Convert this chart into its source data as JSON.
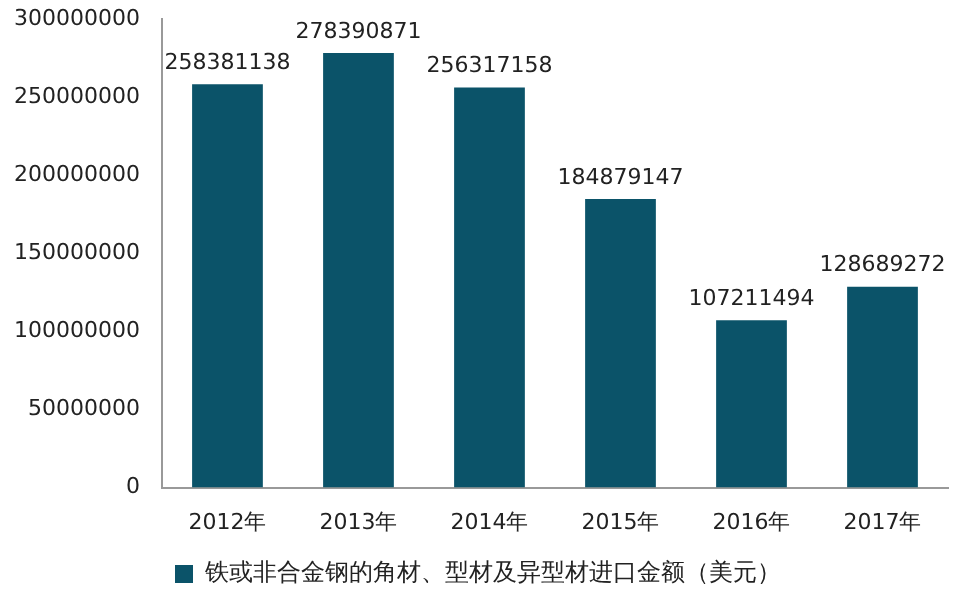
{
  "chart_data": {
    "type": "bar",
    "categories": [
      "2012年",
      "2013年",
      "2014年",
      "2015年",
      "2016年",
      "2017年"
    ],
    "series": [
      {
        "name": "铁或非合金钢的角材、型材及异型材进口金额（美元）",
        "color": "#0b5369",
        "values": [
          258381138,
          278390871,
          256317158,
          184879147,
          107211494,
          128689272
        ]
      }
    ],
    "ylim": [
      0,
      300000000
    ],
    "yticks": [
      0,
      50000000,
      100000000,
      150000000,
      200000000,
      250000000,
      300000000
    ],
    "data_labels": true,
    "legend": "bottom",
    "grid": false
  }
}
